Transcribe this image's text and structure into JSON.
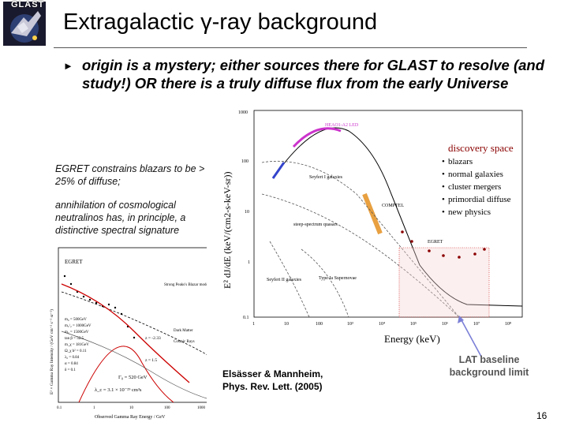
{
  "logo": {
    "text": "GLAST"
  },
  "title": "Extragalactic γ-ray background",
  "bullet": {
    "marker": "►",
    "text": "origin is a mystery; either sources there for GLAST to resolve (and study!) OR there is a truly diffuse flux from the early Universe"
  },
  "notes": [
    "EGRET constrains blazars to be > 25% of diffuse;",
    "annihilation of cosmological neutralinos has, in principle, a distinctive spectral signature"
  ],
  "left_figure": {
    "instrument": "EGRET",
    "xlabel": "Observed Gamma Ray Energy / GeV",
    "ylabel": "E² × Gamma Ray Intensity / (GeV cm⁻² s⁻¹ sr⁻¹)",
    "params": [
      "m₀ = 500GeV",
      "m₁/₂ = 1000GeV",
      "m₂ = 1500GeV",
      "tan β = 52.5",
      "m_χ = 181GeV",
      "Ω_χ h² = 0.11",
      "λ₀ = 0.84",
      "α = 0.84",
      "δ = 0.1"
    ],
    "legend": [
      "Strong Peaks's Blazar model",
      "Dark Matter",
      "Cosmic Rays"
    ],
    "z_labels": [
      "z = -2.33",
      "z = 1.5"
    ],
    "dm_formula_1": "Γ₀ = 520 GeV",
    "dm_formula_2": "λ_c = 3.1 × 10⁻²⁹ cm³s",
    "x_ticks": [
      "0.1",
      "1",
      "10",
      "100",
      "1000"
    ]
  },
  "right_figure": {
    "ylabel": "E² dJ/dE (keV/(cm2-s-keV-sr))",
    "xlabel": "Energy (keV)",
    "y_ticks": [
      "1000",
      "100",
      "10",
      "1",
      "0.1"
    ],
    "x_ticks": [
      "1",
      "10",
      "100",
      "10³",
      "10⁴",
      "10⁵",
      "10⁶",
      "10⁷",
      "10⁸"
    ],
    "labels": {
      "heao": "HEAO1-A2 LED",
      "seyfert1": "Seyfert I galaxies",
      "comptel": "COMPTEL",
      "steep": "steep-spectrum quasars",
      "seyfert2": "Seyfert II galaxies",
      "type1a": "Type Ia Supernovae",
      "egret": "EGRET"
    },
    "discovery": {
      "heading": "discovery space",
      "items": [
        "blazars",
        "normal galaxies",
        "cluster mergers",
        "primordial diffuse",
        "new physics"
      ]
    }
  },
  "citation": {
    "line1": "Elsässer & Mannheim,",
    "line2": "Phys. Rev. Lett. (2005)"
  },
  "lat_label": "LAT baseline background limit",
  "page_number": "16",
  "colors": {
    "discovery": "#8b0000",
    "lat_arrow": "#7b7fd6",
    "magenta": "#cc33cc",
    "orange": "#e8a040"
  }
}
